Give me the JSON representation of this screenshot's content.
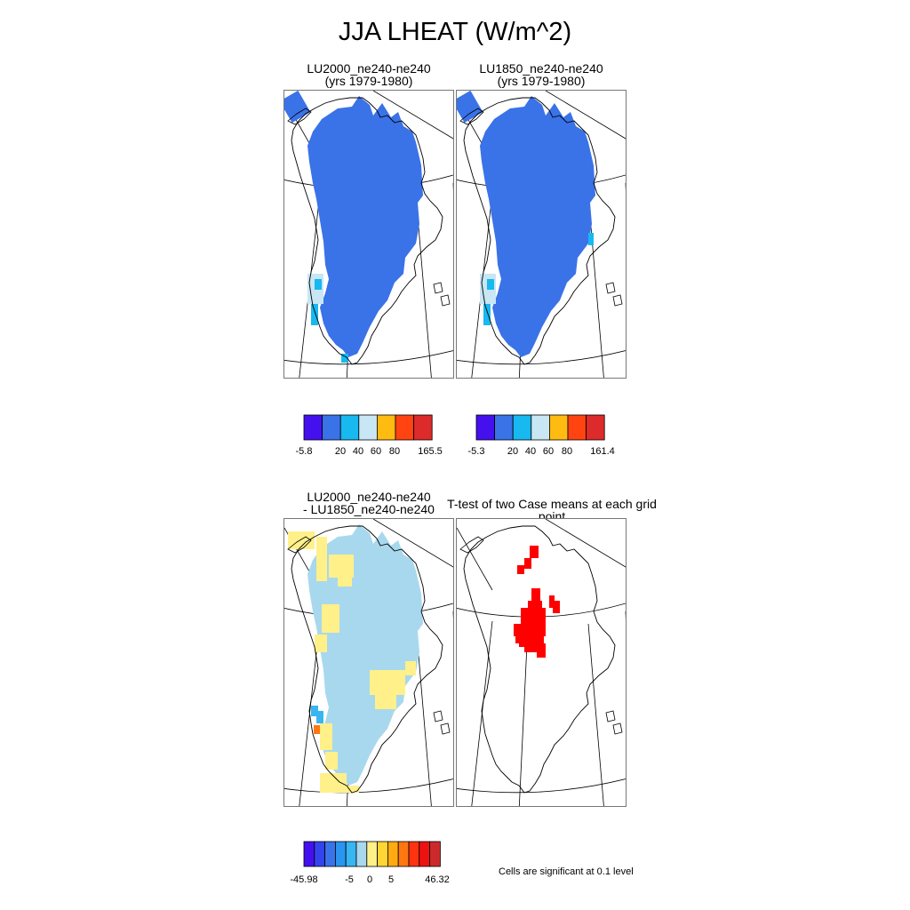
{
  "main_title": "JJA LHEAT (W/m^2)",
  "panels": [
    {
      "title_line1": "LU2000_ne240-ne240",
      "title_line2": "(yrs 1979-1980)"
    },
    {
      "title_line1": "LU1850_ne240-ne240",
      "title_line2": "(yrs 1979-1980)"
    },
    {
      "title_line1": "LU2000_ne240-ne240",
      "title_line2": "- LU1850_ne240-ne240"
    },
    {
      "title_line1": "T-test of two Case means at each grid point",
      "title_line2": ""
    }
  ],
  "colorbars": [
    {
      "colors": [
        "#4411ee",
        "#3a72e8",
        "#18b8f0",
        "#c8e6f4",
        "#ffbb11",
        "#ff4411",
        "#dd2a2a"
      ],
      "labels": [
        "-5.8",
        "20",
        "40",
        "60",
        "80",
        "165.5"
      ]
    },
    {
      "colors": [
        "#4411ee",
        "#3a72e8",
        "#18b8f0",
        "#c8e6f4",
        "#ffbb11",
        "#ff4411",
        "#dd2a2a"
      ],
      "labels": [
        "-5.3",
        "20",
        "40",
        "60",
        "80",
        "161.4"
      ]
    },
    {
      "colors": [
        "#4411ee",
        "#3344ee",
        "#3a72e8",
        "#2a95f0",
        "#38b6f2",
        "#a8d8ee",
        "#fff08a",
        "#ffd633",
        "#ffaa11",
        "#ff7711",
        "#ff3311",
        "#ee1111",
        "#cc2a2a"
      ],
      "labels": [
        "-45.98",
        "-5",
        "0",
        "5",
        "46.32"
      ]
    }
  ],
  "significance_note": "Cells are significant at 0.1 level",
  "map_colors": {
    "ice_blue": "#3a72e8",
    "cyan": "#18b8f0",
    "pale_blue": "#c8e6f4",
    "diff_light_blue": "#a8d8ee",
    "diff_yellow": "#fff08a",
    "diff_orange": "#ff7711",
    "sig_red": "#ff0000"
  }
}
